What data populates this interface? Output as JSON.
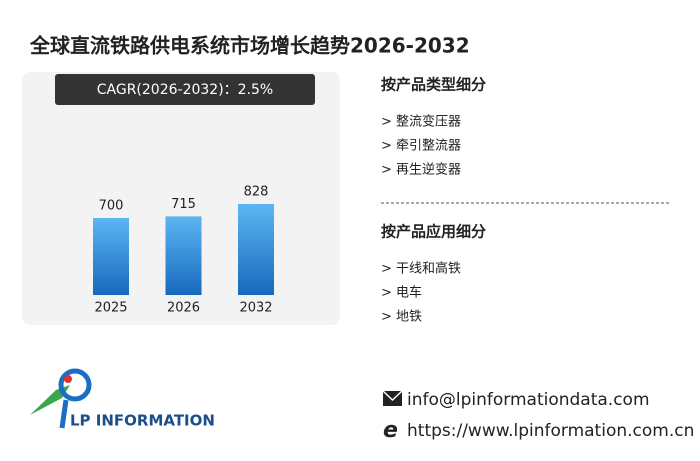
{
  "title": "全球直流铁路供电系统市场增长趋势2026-2032",
  "chart_data": {
    "type": "bar",
    "cagr_label": "CAGR(2026-2032)：2.5%",
    "categories": [
      "2025",
      "2026",
      "2032"
    ],
    "values": [
      700,
      715,
      828
    ],
    "color": "#2a86d6"
  },
  "segments": [
    {
      "heading": "按产品类型细分",
      "items": [
        "> 整流变压器",
        "> 牵引整流器",
        "> 再生逆变器"
      ]
    },
    {
      "heading": "按产品应用细分",
      "items": [
        "> 干线和高铁",
        "> 电车",
        "> 地铁"
      ]
    }
  ],
  "logo": "LP INFORMATION",
  "contact": {
    "email": "info@lpinformationdata.com",
    "website": "https://www.lpinformation.com.cn"
  }
}
